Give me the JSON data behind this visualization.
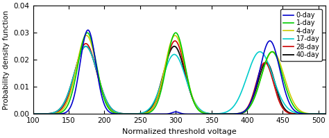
{
  "series": [
    {
      "label": "0-day",
      "color": "#0000CC",
      "lw": 1.2,
      "peaks": [
        {
          "mu": 177,
          "sigma": 11,
          "amp": 0.031
        },
        {
          "mu": 300,
          "sigma": 5,
          "amp": 0.0008
        },
        {
          "mu": 432,
          "sigma": 14,
          "amp": 0.027
        }
      ]
    },
    {
      "label": "1-day",
      "color": "#00CC00",
      "lw": 1.2,
      "peaks": [
        {
          "mu": 176,
          "sigma": 13,
          "amp": 0.03
        },
        {
          "mu": 300,
          "sigma": 13,
          "amp": 0.03
        },
        {
          "mu": 435,
          "sigma": 15,
          "amp": 0.023
        }
      ]
    },
    {
      "label": "4-day",
      "color": "#CCCC00",
      "lw": 1.2,
      "peaks": [
        {
          "mu": 175,
          "sigma": 14,
          "amp": 0.029
        },
        {
          "mu": 299,
          "sigma": 14,
          "amp": 0.029
        },
        {
          "mu": 436,
          "sigma": 16,
          "amp": 0.023
        }
      ]
    },
    {
      "label": "17-day",
      "color": "#00CCCC",
      "lw": 1.2,
      "peaks": [
        {
          "mu": 174,
          "sigma": 16,
          "amp": 0.025
        },
        {
          "mu": 298,
          "sigma": 16,
          "amp": 0.022
        },
        {
          "mu": 418,
          "sigma": 18,
          "amp": 0.023
        }
      ]
    },
    {
      "label": "28-day",
      "color": "#CC0000",
      "lw": 1.2,
      "peaks": [
        {
          "mu": 174,
          "sigma": 15,
          "amp": 0.026
        },
        {
          "mu": 299,
          "sigma": 14,
          "amp": 0.027
        },
        {
          "mu": 425,
          "sigma": 12,
          "amp": 0.019
        }
      ]
    },
    {
      "label": "40-day",
      "color": "#111111",
      "lw": 1.4,
      "peaks": [
        {
          "mu": 174,
          "sigma": 16,
          "amp": 0.025
        },
        {
          "mu": 298,
          "sigma": 15,
          "amp": 0.025
        },
        {
          "mu": 427,
          "sigma": 12,
          "amp": 0.019
        }
      ]
    }
  ],
  "xlim": [
    100,
    510
  ],
  "ylim": [
    0,
    0.04
  ],
  "xticks": [
    100,
    150,
    200,
    250,
    300,
    350,
    400,
    450,
    500
  ],
  "yticks": [
    0,
    0.01,
    0.02,
    0.03,
    0.04
  ],
  "xlabel": "Normalized threshold voltage",
  "ylabel": "Probability density function",
  "legend_loc": "upper right",
  "fig_bg": "#ffffff"
}
